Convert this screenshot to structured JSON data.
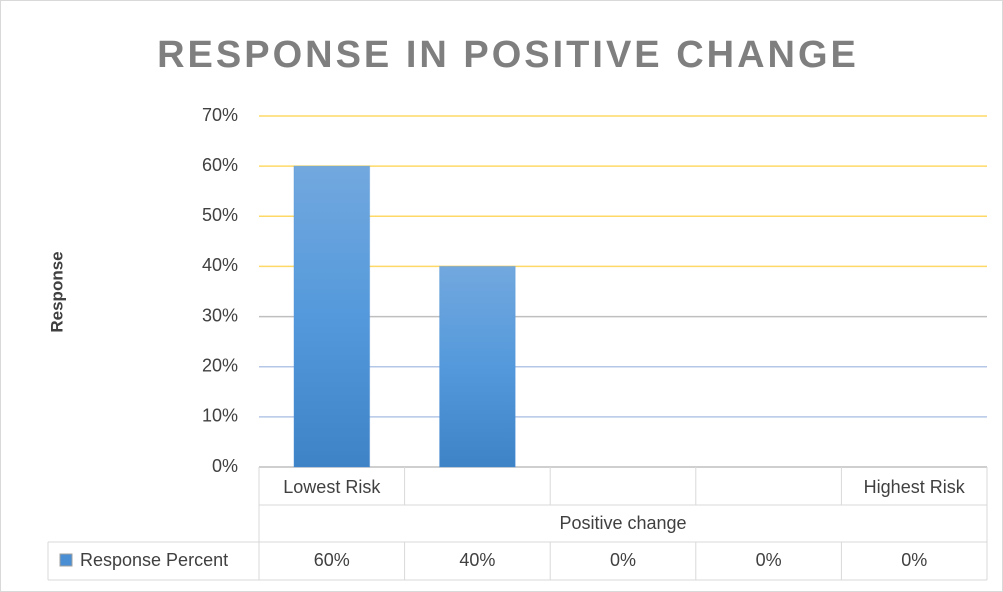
{
  "chart_data": {
    "type": "bar",
    "title": "RESPONSE IN POSITIVE CHANGE",
    "x_label": "Positive change",
    "y_label": "Response",
    "categories": [
      "Lowest Risk",
      null,
      null,
      null,
      "Highest Risk"
    ],
    "series": [
      {
        "name": "Response Percent",
        "color": "#4a8fd4",
        "values": [
          60,
          40,
          0,
          0,
          0
        ],
        "value_labels": [
          "60%",
          "40%",
          "0%",
          "0%",
          "0%"
        ]
      }
    ],
    "ylim": [
      0,
      70
    ],
    "yticks": [
      {
        "value": 0,
        "label": "0%"
      },
      {
        "value": 10,
        "label": "10%"
      },
      {
        "value": 20,
        "label": "20%"
      },
      {
        "value": 30,
        "label": "30%"
      },
      {
        "value": 40,
        "label": "40%"
      },
      {
        "value": 50,
        "label": "50%"
      },
      {
        "value": 60,
        "label": "60%"
      },
      {
        "value": 70,
        "label": "70%"
      }
    ],
    "grid": true,
    "grid_colors": [
      "#bfbfbf",
      "#b4c7e7",
      "#b4c7e7",
      "#bfbfbf",
      "#ffd966",
      "#ffd966",
      "#ffd966",
      "#ffd966"
    ]
  }
}
